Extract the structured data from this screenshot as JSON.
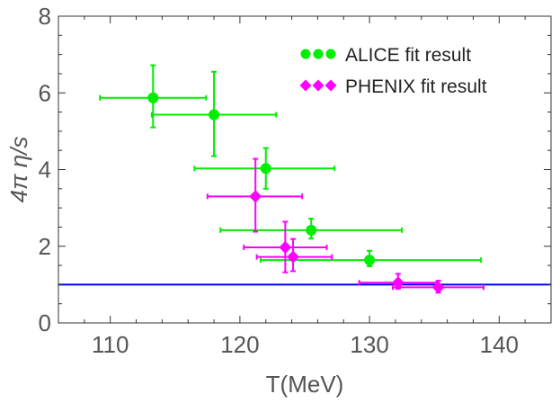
{
  "chart_data": {
    "type": "scatter",
    "title": "",
    "xlabel": "T(MeV)",
    "ylabel": "4π η/s",
    "xlim": [
      106,
      144
    ],
    "ylim": [
      0,
      8
    ],
    "x_ticks": [
      "110",
      "120",
      "130",
      "140"
    ],
    "x_tick_values": [
      110,
      120,
      130,
      140
    ],
    "y_ticks": [
      "0",
      "2",
      "4",
      "6",
      "8"
    ],
    "y_tick_values": [
      0,
      2,
      4,
      6,
      8
    ],
    "grid": false,
    "legend_position": "top-right",
    "reference_line": {
      "y": 1,
      "color": "#0000ff"
    },
    "series": [
      {
        "name": "ALICE fit result",
        "color": "#00ee00",
        "marker": "circle",
        "points": [
          {
            "x": 113.3,
            "y": 5.87,
            "xerr_low": 4.1,
            "xerr_high": 4.1,
            "yerr_low": 0.77,
            "yerr_high": 0.85
          },
          {
            "x": 118.0,
            "y": 5.43,
            "xerr_low": 4.8,
            "xerr_high": 4.8,
            "yerr_low": 1.08,
            "yerr_high": 1.12
          },
          {
            "x": 122.0,
            "y": 4.03,
            "xerr_low": 5.5,
            "xerr_high": 5.3,
            "yerr_low": 0.53,
            "yerr_high": 0.53
          },
          {
            "x": 125.5,
            "y": 2.42,
            "xerr_low": 7.0,
            "xerr_high": 7.0,
            "yerr_low": 0.22,
            "yerr_high": 0.3
          },
          {
            "x": 130.0,
            "y": 1.64,
            "xerr_low": 8.4,
            "xerr_high": 8.6,
            "yerr_low": 0.16,
            "yerr_high": 0.24
          }
        ]
      },
      {
        "name": "PHENIX fit result",
        "color": "#ff00ff",
        "marker": "diamond",
        "points": [
          {
            "x": 121.2,
            "y": 3.3,
            "xerr_low": 3.7,
            "xerr_high": 3.6,
            "yerr_low": 0.92,
            "yerr_high": 0.98
          },
          {
            "x": 123.5,
            "y": 1.97,
            "xerr_low": 3.2,
            "xerr_high": 3.2,
            "yerr_low": 0.65,
            "yerr_high": 0.67
          },
          {
            "x": 124.1,
            "y": 1.72,
            "xerr_low": 2.8,
            "xerr_high": 3.0,
            "yerr_low": 0.37,
            "yerr_high": 0.47
          },
          {
            "x": 132.2,
            "y": 1.05,
            "xerr_low": 3.0,
            "xerr_high": 3.0,
            "yerr_low": 0.16,
            "yerr_high": 0.23
          },
          {
            "x": 135.3,
            "y": 0.93,
            "xerr_low": 3.5,
            "xerr_high": 3.5,
            "yerr_low": 0.14,
            "yerr_high": 0.17
          }
        ]
      }
    ]
  }
}
